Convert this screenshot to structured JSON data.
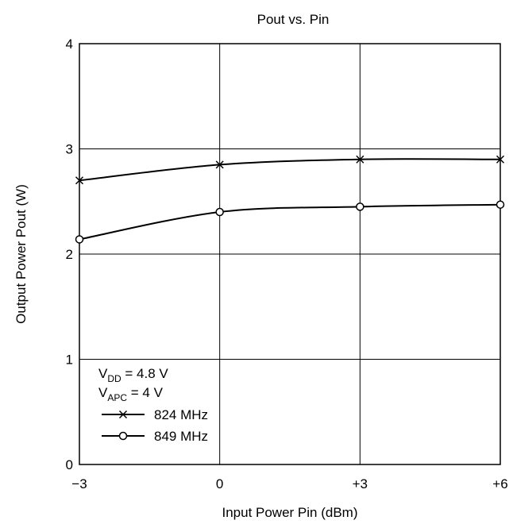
{
  "chart_data": {
    "type": "line",
    "title": "Pout vs. Pin",
    "xlabel": "Input Power  Pin  (dBm)",
    "ylabel": "Output Power  Pout  (W)",
    "x": [
      -3,
      0,
      3,
      6
    ],
    "x_tick_labels": [
      "−3",
      "0",
      "+3",
      "+6"
    ],
    "y_ticks": [
      0,
      1,
      2,
      3,
      4
    ],
    "y_tick_labels": [
      "0",
      "1",
      "2",
      "3",
      "4"
    ],
    "xlim": [
      -3,
      6
    ],
    "ylim": [
      0,
      4
    ],
    "grid": true,
    "series": [
      {
        "name": "824 MHz",
        "marker": "cross",
        "values": [
          2.7,
          2.85,
          2.9,
          2.9
        ]
      },
      {
        "name": "849 MHz",
        "marker": "circle",
        "values": [
          2.14,
          2.4,
          2.45,
          2.47
        ]
      }
    ],
    "annotation": {
      "vdd": {
        "main": "V",
        "sub": "DD",
        "rest": " = 4.8 V"
      },
      "vapc": {
        "main": "V",
        "sub": "APC",
        "rest": " = 4 V"
      }
    },
    "legend_position": "bottom-left",
    "colors": {
      "line": "#000000",
      "grid": "#000000",
      "background": "#ffffff"
    }
  }
}
